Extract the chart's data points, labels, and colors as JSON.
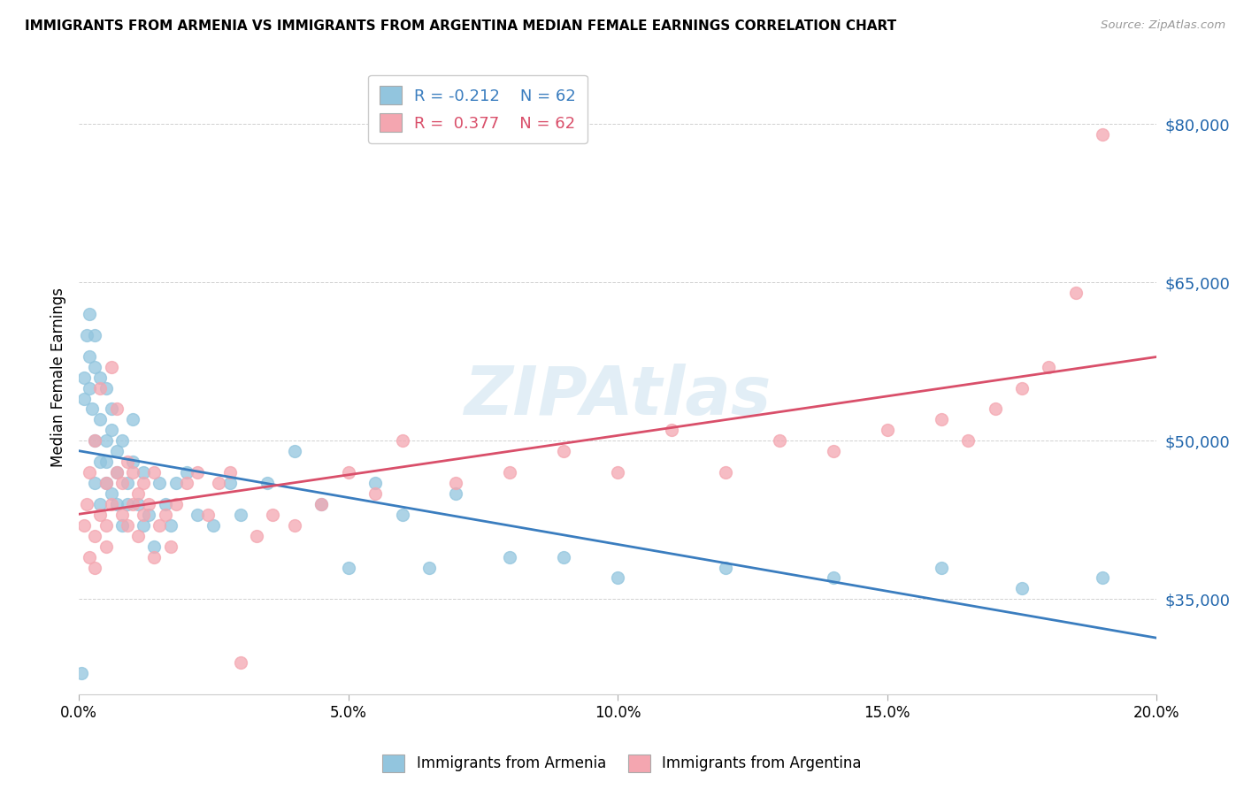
{
  "title": "IMMIGRANTS FROM ARMENIA VS IMMIGRANTS FROM ARGENTINA MEDIAN FEMALE EARNINGS CORRELATION CHART",
  "source": "Source: ZipAtlas.com",
  "ylabel": "Median Female Earnings",
  "ytick_labels": [
    "$35,000",
    "$50,000",
    "$65,000",
    "$80,000"
  ],
  "ytick_values": [
    35000,
    50000,
    65000,
    80000
  ],
  "ymin": 26000,
  "ymax": 86000,
  "xmin": 0.0,
  "xmax": 0.2,
  "xtick_positions": [
    0.0,
    0.05,
    0.1,
    0.15,
    0.2
  ],
  "xtick_labels": [
    "0.0%",
    "5.0%",
    "10.0%",
    "15.0%",
    "20.0%"
  ],
  "legend_label_blue": "Immigrants from Armenia",
  "legend_label_pink": "Immigrants from Argentina",
  "blue_color": "#92c5de",
  "pink_color": "#f4a6b0",
  "trendline_blue_color": "#3a7dbf",
  "trendline_pink_color": "#d94f6a",
  "watermark_text": "ZIPAtlas",
  "blue_x": [
    0.0005,
    0.001,
    0.001,
    0.0015,
    0.002,
    0.002,
    0.002,
    0.0025,
    0.003,
    0.003,
    0.003,
    0.003,
    0.004,
    0.004,
    0.004,
    0.004,
    0.005,
    0.005,
    0.005,
    0.005,
    0.006,
    0.006,
    0.006,
    0.007,
    0.007,
    0.007,
    0.008,
    0.008,
    0.009,
    0.009,
    0.01,
    0.01,
    0.011,
    0.012,
    0.012,
    0.013,
    0.014,
    0.015,
    0.016,
    0.017,
    0.018,
    0.02,
    0.022,
    0.025,
    0.028,
    0.03,
    0.035,
    0.04,
    0.045,
    0.05,
    0.055,
    0.06,
    0.065,
    0.07,
    0.08,
    0.09,
    0.1,
    0.12,
    0.14,
    0.16,
    0.175,
    0.19
  ],
  "blue_y": [
    28000,
    56000,
    54000,
    60000,
    58000,
    62000,
    55000,
    53000,
    50000,
    57000,
    60000,
    46000,
    52000,
    48000,
    56000,
    44000,
    50000,
    55000,
    46000,
    48000,
    51000,
    45000,
    53000,
    49000,
    44000,
    47000,
    50000,
    42000,
    46000,
    44000,
    48000,
    52000,
    44000,
    47000,
    42000,
    43000,
    40000,
    46000,
    44000,
    42000,
    46000,
    47000,
    43000,
    42000,
    46000,
    43000,
    46000,
    49000,
    44000,
    38000,
    46000,
    43000,
    38000,
    45000,
    39000,
    39000,
    37000,
    38000,
    37000,
    38000,
    36000,
    37000
  ],
  "pink_x": [
    0.001,
    0.0015,
    0.002,
    0.002,
    0.003,
    0.003,
    0.003,
    0.004,
    0.004,
    0.005,
    0.005,
    0.005,
    0.006,
    0.006,
    0.007,
    0.007,
    0.008,
    0.008,
    0.009,
    0.009,
    0.01,
    0.01,
    0.011,
    0.011,
    0.012,
    0.012,
    0.013,
    0.014,
    0.014,
    0.015,
    0.016,
    0.017,
    0.018,
    0.02,
    0.022,
    0.024,
    0.026,
    0.028,
    0.03,
    0.033,
    0.036,
    0.04,
    0.045,
    0.05,
    0.055,
    0.06,
    0.07,
    0.08,
    0.09,
    0.1,
    0.11,
    0.12,
    0.13,
    0.14,
    0.15,
    0.16,
    0.165,
    0.17,
    0.175,
    0.18,
    0.185,
    0.19
  ],
  "pink_y": [
    42000,
    44000,
    39000,
    47000,
    41000,
    38000,
    50000,
    43000,
    55000,
    40000,
    46000,
    42000,
    57000,
    44000,
    53000,
    47000,
    43000,
    46000,
    48000,
    42000,
    44000,
    47000,
    45000,
    41000,
    46000,
    43000,
    44000,
    39000,
    47000,
    42000,
    43000,
    40000,
    44000,
    46000,
    47000,
    43000,
    46000,
    47000,
    29000,
    41000,
    43000,
    42000,
    44000,
    47000,
    45000,
    50000,
    46000,
    47000,
    49000,
    47000,
    51000,
    47000,
    50000,
    49000,
    51000,
    52000,
    50000,
    53000,
    55000,
    57000,
    64000,
    79000
  ]
}
